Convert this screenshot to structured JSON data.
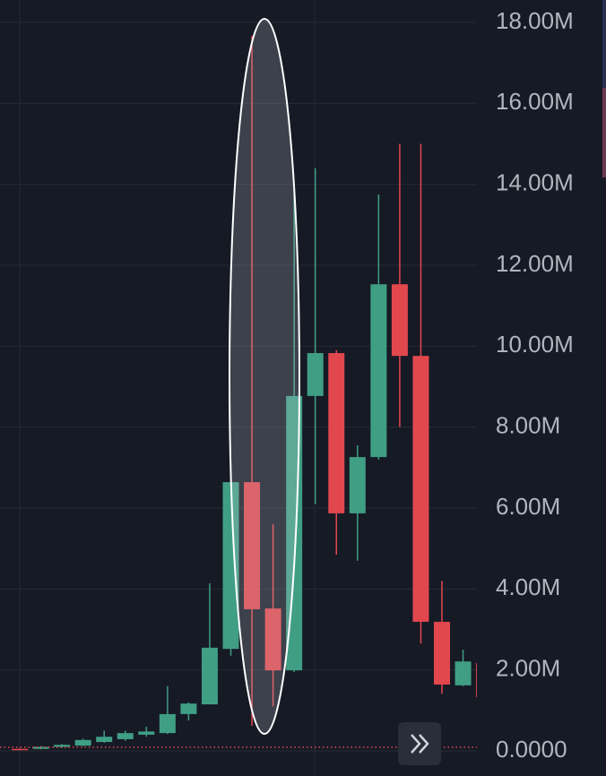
{
  "chart_data": {
    "type": "candlestick",
    "up_color": "#3f9e84",
    "down_color": "#e2474e",
    "open": [
      50000,
      50000,
      100000,
      130000,
      220000,
      290000,
      400000,
      440000,
      910000,
      1150000,
      2520000,
      6640000,
      3520000,
      1990000,
      8770000,
      9830000,
      5870000,
      7260000,
      11530000,
      9760000,
      3190000,
      1620000,
      2170000
    ],
    "high": [
      60000,
      120000,
      170000,
      300000,
      500000,
      500000,
      600000,
      1600000,
      1200000,
      4140000,
      6640000,
      17670000,
      5600000,
      13810000,
      14400000,
      9900000,
      7550000,
      13750000,
      15000000,
      15000000,
      4200000,
      2500000,
      2200000
    ],
    "low": [
      20000,
      40000,
      80000,
      120000,
      200000,
      250000,
      350000,
      420000,
      750000,
      1150000,
      2350000,
      620000,
      1100000,
      1950000,
      6100000,
      4850000,
      4700000,
      7200000,
      8000000,
      2650000,
      1410000,
      1600000,
      1300000
    ],
    "close": [
      30000,
      100000,
      150000,
      270000,
      350000,
      440000,
      480000,
      910000,
      1170000,
      2550000,
      6640000,
      3500000,
      1990000,
      8770000,
      9830000,
      5870000,
      7260000,
      11530000,
      9760000,
      3190000,
      1640000,
      2210000,
      1330000
    ],
    "price_line": 90000,
    "ylim": [
      0,
      18000000
    ],
    "yticks": [
      {
        "value": 0,
        "label": "0.0000"
      },
      {
        "value": 2000000,
        "label": "2.00M"
      },
      {
        "value": 4000000,
        "label": "4.00M"
      },
      {
        "value": 6000000,
        "label": "6.00M"
      },
      {
        "value": 8000000,
        "label": "8.00M"
      },
      {
        "value": 10000000,
        "label": "10.00M"
      },
      {
        "value": 12000000,
        "label": "12.00M"
      },
      {
        "value": 14000000,
        "label": "14.00M"
      },
      {
        "value": 16000000,
        "label": "16.00M"
      },
      {
        "value": 18000000,
        "label": "18.00M"
      }
    ],
    "grid": true
  }
}
